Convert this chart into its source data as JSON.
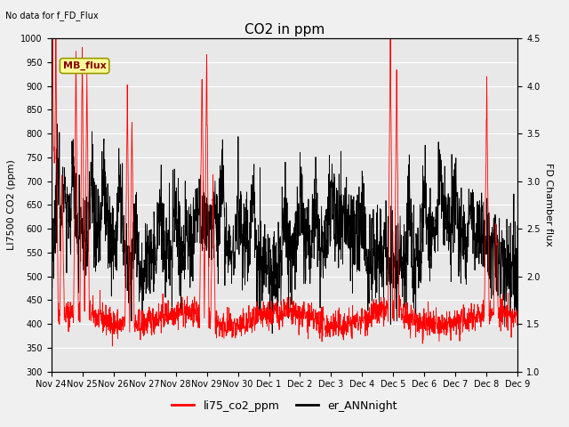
{
  "title": "CO2 in ppm",
  "top_left_text": "No data for f_FD_Flux",
  "ylabel_left": "LI7500 CO2 (ppm)",
  "ylabel_right": "FD Chamber flux",
  "ylim_left": [
    300,
    1000
  ],
  "ylim_right": [
    1.0,
    4.5
  ],
  "yticks_left": [
    300,
    350,
    400,
    450,
    500,
    550,
    600,
    650,
    700,
    750,
    800,
    850,
    900,
    950,
    1000
  ],
  "yticks_right": [
    1.0,
    1.5,
    2.0,
    2.5,
    3.0,
    3.5,
    4.0,
    4.5
  ],
  "date_labels": [
    "Nov 24",
    "Nov 25",
    "Nov 26",
    "Nov 27",
    "Nov 28",
    "Nov 29",
    "Nov 30",
    "Dec 1",
    "Dec 2",
    "Dec 3",
    "Dec 4",
    "Dec 5",
    "Dec 6",
    "Dec 7",
    "Dec 8",
    "Dec 9"
  ],
  "legend_label_red": "li75_co2_ppm",
  "legend_label_black": "er_ANNnight",
  "mb_flux_label": "MB_flux",
  "line_color_red": "#ff0000",
  "line_color_black": "#000000",
  "bg_color": "#f0f0f0",
  "plot_bg_color": "#e8e8e8",
  "mb_flux_box_color": "#ffff99",
  "mb_flux_border_color": "#999900",
  "title_fontsize": 11,
  "label_fontsize": 8,
  "tick_fontsize": 7,
  "seed": 42,
  "n_points": 2000,
  "n_days": 15
}
